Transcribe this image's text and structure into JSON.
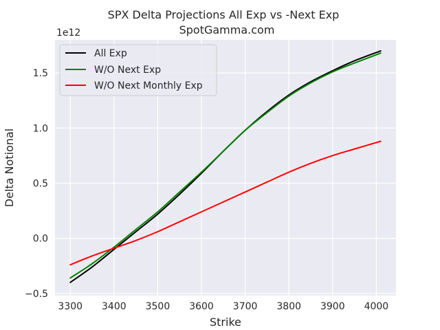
{
  "chart_data": {
    "type": "line",
    "title": "SPX Delta Projections All Exp vs -Next Exp",
    "subtitle": "SpotGamma.com",
    "xlabel": "Strike",
    "ylabel": "Delta Notional",
    "offset_text": "1e12",
    "xlim": [
      3265,
      4045
    ],
    "ylim": [
      -0.52,
      1.8
    ],
    "grid": true,
    "legend_position": "upper-left",
    "x_ticks": [
      3300,
      3400,
      3500,
      3600,
      3700,
      3800,
      3900,
      4000
    ],
    "x_tick_labels": [
      "3300",
      "3400",
      "3500",
      "3600",
      "3700",
      "3800",
      "3900",
      "4000"
    ],
    "y_ticks": [
      -0.5,
      0.0,
      0.5,
      1.0,
      1.5
    ],
    "y_tick_labels": [
      "−0.5",
      "0.0",
      "0.5",
      "1.0",
      "1.5"
    ],
    "x": [
      3300,
      3350,
      3400,
      3450,
      3500,
      3550,
      3600,
      3650,
      3700,
      3750,
      3800,
      3850,
      3900,
      3950,
      4010
    ],
    "series": [
      {
        "name": "All Exp",
        "color": "#000000",
        "values": [
          -0.4,
          -0.26,
          -0.1,
          0.06,
          0.22,
          0.4,
          0.59,
          0.79,
          0.98,
          1.15,
          1.3,
          1.42,
          1.52,
          1.61,
          1.7
        ]
      },
      {
        "name": "W/O Next Exp",
        "color": "#008000",
        "values": [
          -0.36,
          -0.23,
          -0.08,
          0.08,
          0.24,
          0.42,
          0.6,
          0.79,
          0.98,
          1.14,
          1.29,
          1.41,
          1.51,
          1.59,
          1.68
        ]
      },
      {
        "name": "W/O Next Monthly Exp",
        "color": "#ff0000",
        "values": [
          -0.24,
          -0.16,
          -0.09,
          -0.02,
          0.06,
          0.15,
          0.24,
          0.33,
          0.42,
          0.51,
          0.6,
          0.68,
          0.75,
          0.81,
          0.88
        ]
      }
    ]
  }
}
